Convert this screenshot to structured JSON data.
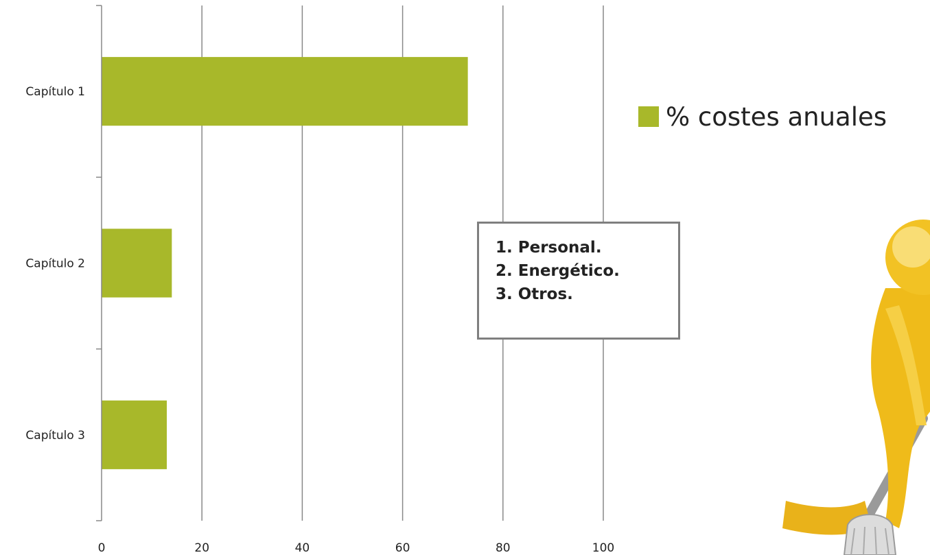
{
  "chart_data": {
    "type": "bar",
    "orientation": "horizontal",
    "categories": [
      "Capítulo 1",
      "Capítulo 2",
      "Capítulo 3"
    ],
    "series": [
      {
        "name": "% costes anuales",
        "values": [
          73,
          14,
          13
        ]
      }
    ],
    "xlim": [
      0,
      100
    ],
    "xticks": [
      "0",
      "20",
      "40",
      "60",
      "80",
      "100"
    ],
    "grid": true,
    "legend_position": "right",
    "colors": {
      "bar": "#a8b82a",
      "grid": "#888888"
    }
  },
  "note_box": {
    "lines": [
      "1. Personal.",
      "2. Energético.",
      "3. Otros."
    ]
  },
  "decoration": {
    "icon": "cleaning-person-icon",
    "color": "#f0c020"
  }
}
